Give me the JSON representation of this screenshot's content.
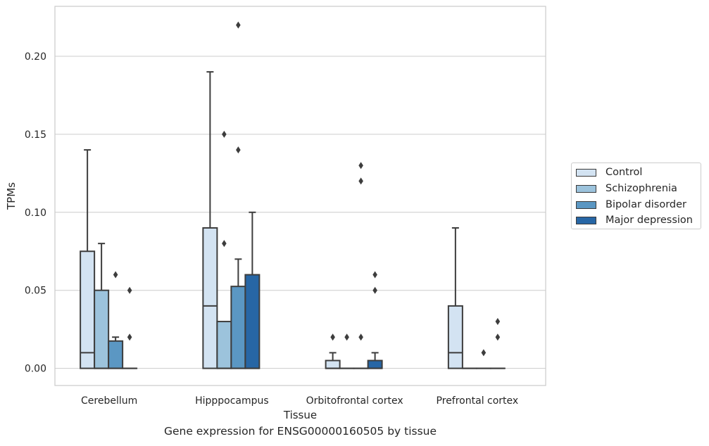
{
  "caption": "Gene expression for ENSG00000160505 by tissue",
  "chart_data": {
    "type": "boxplot",
    "xlabel": "Tissue",
    "ylabel": "TPMs",
    "ylim": [
      -0.011,
      0.232
    ],
    "yticks": [
      0.0,
      0.05,
      0.1,
      0.15,
      0.2
    ],
    "ytick_labels": [
      "0.00",
      "0.05",
      "0.10",
      "0.15",
      "0.20"
    ],
    "grid": "horizontal",
    "legend_position": "right",
    "categories": [
      "Cerebellum",
      "Hipppocampus",
      "Orbitofrontal cortex",
      "Prefrontal cortex"
    ],
    "series": [
      {
        "name": "Control",
        "color": "#d3e3f2",
        "boxes": [
          {
            "q1": 0.0,
            "median": 0.01,
            "q3": 0.075,
            "whisker_low": 0.0,
            "whisker_high": 0.14,
            "outliers": []
          },
          {
            "q1": 0.0,
            "median": 0.04,
            "q3": 0.09,
            "whisker_low": 0.0,
            "whisker_high": 0.19,
            "outliers": []
          },
          {
            "q1": 0.0,
            "median": 0.0,
            "q3": 0.005,
            "whisker_low": 0.0,
            "whisker_high": 0.01,
            "outliers": [
              0.02
            ]
          },
          {
            "q1": 0.0,
            "median": 0.01,
            "q3": 0.04,
            "whisker_low": 0.0,
            "whisker_high": 0.09,
            "outliers": []
          }
        ]
      },
      {
        "name": "Schizophrenia",
        "color": "#9cc3dc",
        "boxes": [
          {
            "q1": 0.0,
            "median": 0.0,
            "q3": 0.05,
            "whisker_low": 0.0,
            "whisker_high": 0.08,
            "outliers": []
          },
          {
            "q1": 0.0,
            "median": 0.0,
            "q3": 0.03,
            "whisker_low": 0.0,
            "whisker_high": 0.03,
            "outliers": [
              0.08,
              0.15
            ]
          },
          {
            "q1": 0.0,
            "median": 0.0,
            "q3": 0.0,
            "whisker_low": 0.0,
            "whisker_high": 0.0,
            "outliers": [
              0.02
            ]
          },
          {
            "q1": 0.0,
            "median": 0.0,
            "q3": 0.0,
            "whisker_low": 0.0,
            "whisker_high": 0.0,
            "outliers": []
          }
        ]
      },
      {
        "name": "Bipolar disorder",
        "color": "#5b97c3",
        "boxes": [
          {
            "q1": 0.0,
            "median": 0.0,
            "q3": 0.0175,
            "whisker_low": 0.0,
            "whisker_high": 0.02,
            "outliers": [
              0.06
            ]
          },
          {
            "q1": 0.0,
            "median": 0.0,
            "q3": 0.0525,
            "whisker_low": 0.0,
            "whisker_high": 0.07,
            "outliers": [
              0.14,
              0.22
            ]
          },
          {
            "q1": 0.0,
            "median": 0.0,
            "q3": 0.0,
            "whisker_low": 0.0,
            "whisker_high": 0.0,
            "outliers": [
              0.02,
              0.12,
              0.13
            ]
          },
          {
            "q1": 0.0,
            "median": 0.0,
            "q3": 0.0,
            "whisker_low": 0.0,
            "whisker_high": 0.0,
            "outliers": [
              0.01
            ]
          }
        ]
      },
      {
        "name": "Major depression",
        "color": "#2766a5",
        "boxes": [
          {
            "q1": 0.0,
            "median": 0.0,
            "q3": 0.0,
            "whisker_low": 0.0,
            "whisker_high": 0.0,
            "outliers": [
              0.02,
              0.05
            ]
          },
          {
            "q1": 0.0,
            "median": 0.0,
            "q3": 0.06,
            "whisker_low": 0.0,
            "whisker_high": 0.1,
            "outliers": []
          },
          {
            "q1": 0.0,
            "median": 0.0,
            "q3": 0.005,
            "whisker_low": 0.0,
            "whisker_high": 0.01,
            "outliers": [
              0.05,
              0.06
            ]
          },
          {
            "q1": 0.0,
            "median": 0.0,
            "q3": 0.0,
            "whisker_low": 0.0,
            "whisker_high": 0.0,
            "outliers": [
              0.02,
              0.03
            ]
          }
        ]
      }
    ]
  }
}
